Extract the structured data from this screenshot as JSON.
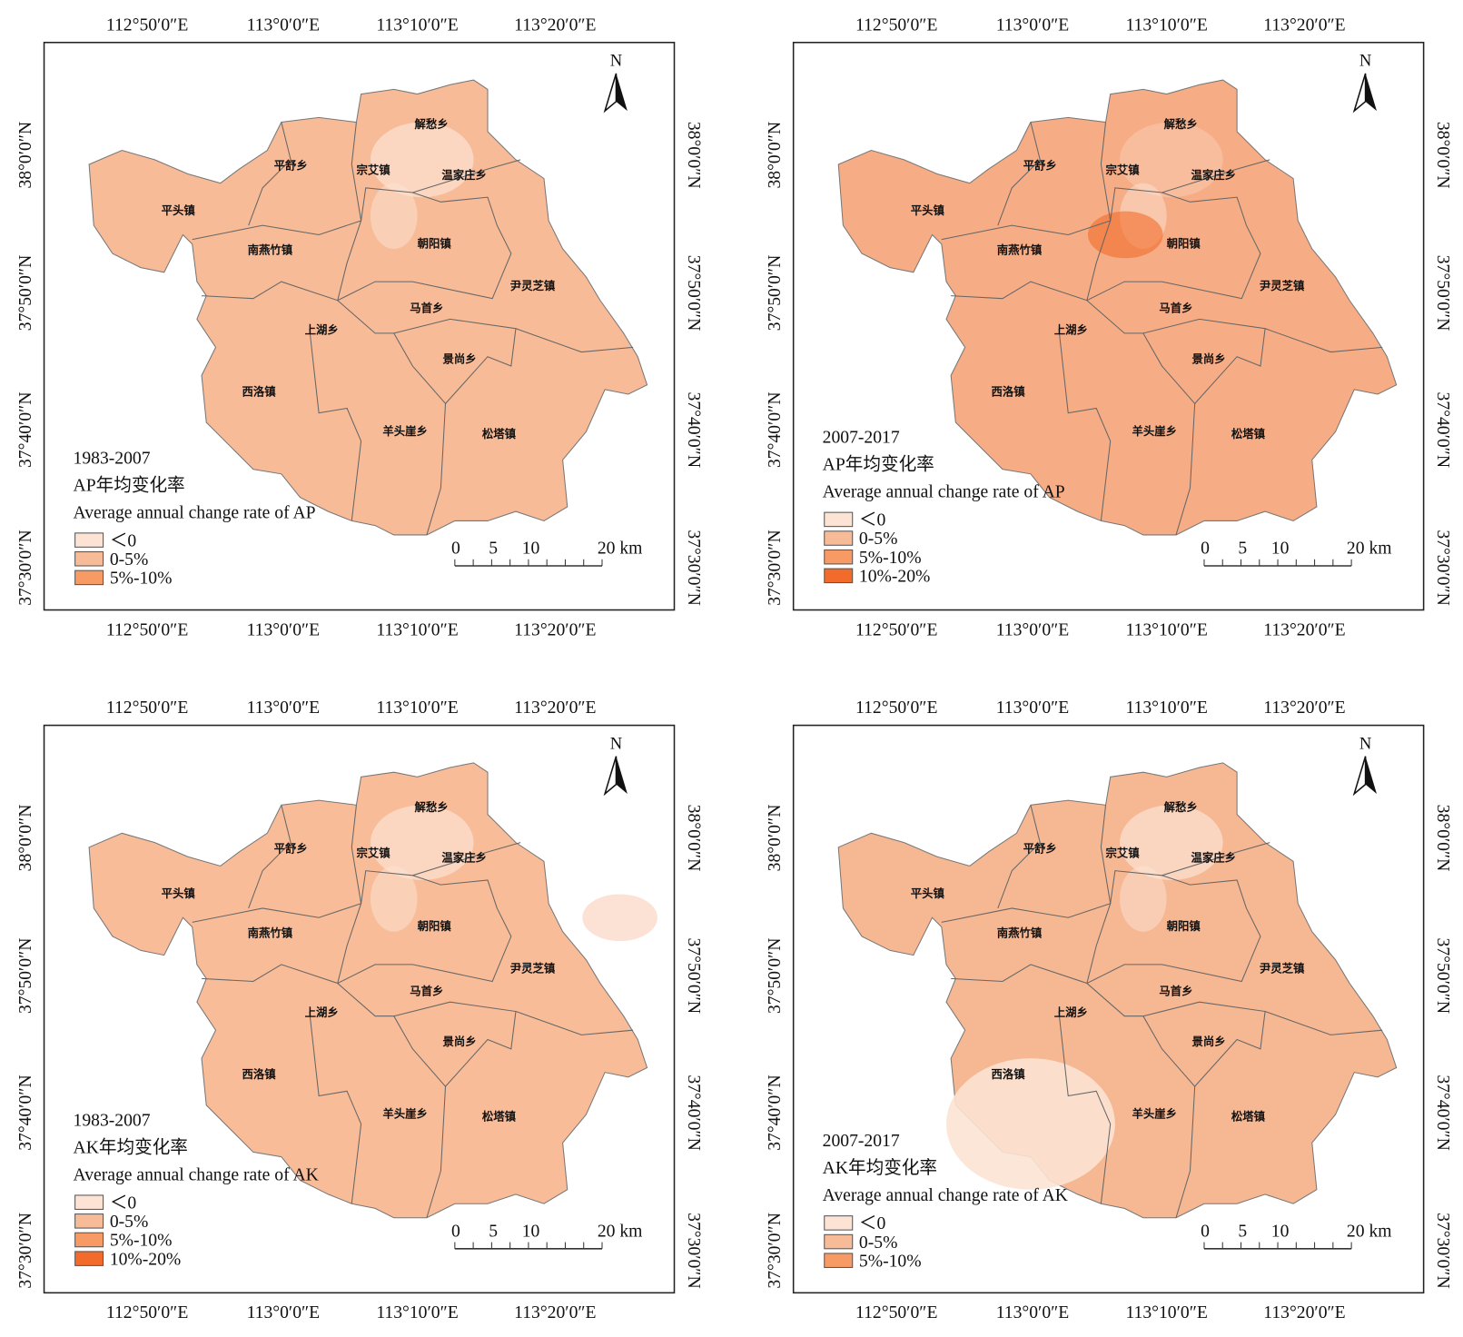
{
  "longitude_labels": [
    "112°50′0″E",
    "113°0′0″E",
    "113°10′0″E",
    "113°20′0″E"
  ],
  "latitude_labels": [
    "38°0′0″N",
    "37°50′0″N",
    "37°40′0″N",
    "37°30′0″N"
  ],
  "townships": [
    "解愁乡",
    "平舒乡",
    "宗艾镇",
    "温家庄乡",
    "平头镇",
    "朝阳镇",
    "南燕竹镇",
    "尹灵芝镇",
    "马首乡",
    "上湖乡",
    "景尚乡",
    "西洛镇",
    "羊头崖乡",
    "松塔镇"
  ],
  "scale_labels": [
    "0",
    "5",
    "10",
    "20 km"
  ],
  "north": "N",
  "panels": [
    {
      "period": "1983-2007",
      "title_cn": "AP年均变化率",
      "title_en": "Average annual change rate of AP",
      "base_color": "#f7bb98",
      "legend": [
        {
          "label": "＜0",
          "color": "#fce3d3"
        },
        {
          "label": "0-5%",
          "color": "#f7bb98"
        },
        {
          "label": "5%-10%",
          "color": "#f79a64"
        }
      ]
    },
    {
      "period": "2007-2017",
      "title_cn": "AP年均变化率",
      "title_en": "Average annual change rate of AP",
      "base_color": "#f6ad85",
      "legend": [
        {
          "label": "＜0",
          "color": "#fce3d3"
        },
        {
          "label": "0-5%",
          "color": "#f7bb98"
        },
        {
          "label": "5%-10%",
          "color": "#f79a64"
        },
        {
          "label": "10%-20%",
          "color": "#f26b2b"
        }
      ]
    },
    {
      "period": "1983-2007",
      "title_cn": "AK年均变化率",
      "title_en": "Average annual change rate of AK",
      "base_color": "#f8bc98",
      "legend": [
        {
          "label": "＜0",
          "color": "#fce3d3"
        },
        {
          "label": "0-5%",
          "color": "#f7bb98"
        },
        {
          "label": "5%-10%",
          "color": "#f79a64"
        },
        {
          "label": "10%-20%",
          "color": "#f26b2b"
        }
      ]
    },
    {
      "period": "2007-2017",
      "title_cn": "AK年均变化率",
      "title_en": "Average annual change rate of AK",
      "base_color": "#f6b793",
      "legend": [
        {
          "label": "＜0",
          "color": "#fce3d3"
        },
        {
          "label": "0-5%",
          "color": "#f7bb98"
        },
        {
          "label": "5%-10%",
          "color": "#f79a64"
        }
      ]
    }
  ]
}
